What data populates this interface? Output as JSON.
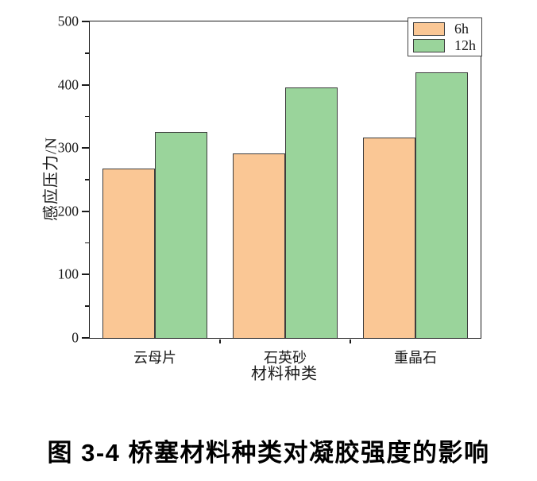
{
  "figure": {
    "caption": "图 3-4 桥塞材料种类对凝胶强度的影响"
  },
  "chart_data": {
    "type": "bar",
    "categories": [
      "云母片",
      "石英砂",
      "重晶石"
    ],
    "series": [
      {
        "name": "6h",
        "color": "#FAC795",
        "values": [
          267,
          291,
          316
        ]
      },
      {
        "name": "12h",
        "color": "#9AD49B",
        "values": [
          325,
          396,
          420
        ]
      }
    ],
    "xlabel": "材料种类",
    "ylabel": "感应压力/N",
    "ylim": [
      0,
      500
    ],
    "ytick_step": 100,
    "yminor_step": 50,
    "grid": false,
    "legend_position": "top-right",
    "axis_color": "#1a1a1a",
    "bar_edge_color": "#3d3d3d"
  }
}
